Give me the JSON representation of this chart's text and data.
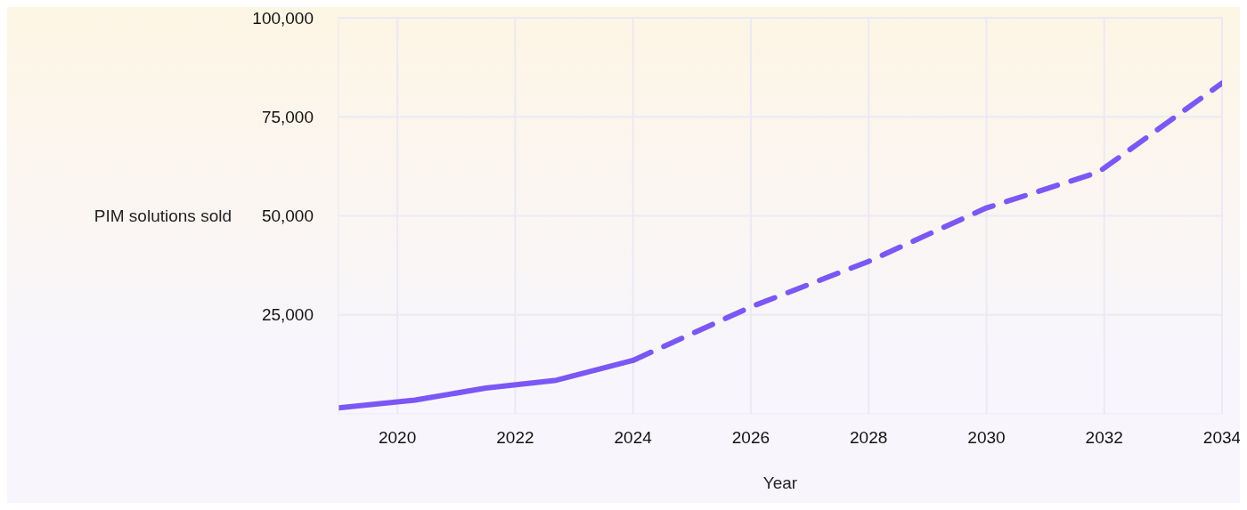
{
  "chart_data": {
    "type": "line",
    "xlabel": "Year",
    "ylabel": "PIM solutions sold",
    "xlim": [
      2019,
      2034
    ],
    "xticks": [
      2020,
      2022,
      2024,
      2026,
      2028,
      2030,
      2032,
      2034
    ],
    "ylim": [
      0,
      100000
    ],
    "yticks": [
      {
        "value": 25000,
        "label": "25,000"
      },
      {
        "value": 50000,
        "label": "50,000"
      },
      {
        "value": 75000,
        "label": "75,000"
      },
      {
        "value": 100000,
        "label": "100,000"
      }
    ],
    "grid": true,
    "marker": "none",
    "series": [
      {
        "color": "#7b57f5",
        "line_style": "solid",
        "x": [
          2019,
          2020.3,
          2021.5,
          2022.7,
          2024
        ],
        "values": [
          1500,
          3500,
          6500,
          8500,
          13500
        ]
      },
      {
        "color": "#7b57f5",
        "line_style": "dashed",
        "x": [
          2024,
          2026,
          2028,
          2030,
          2031.9,
          2034
        ],
        "values": [
          13500,
          27000,
          38500,
          52000,
          61000,
          83500
        ]
      }
    ]
  }
}
